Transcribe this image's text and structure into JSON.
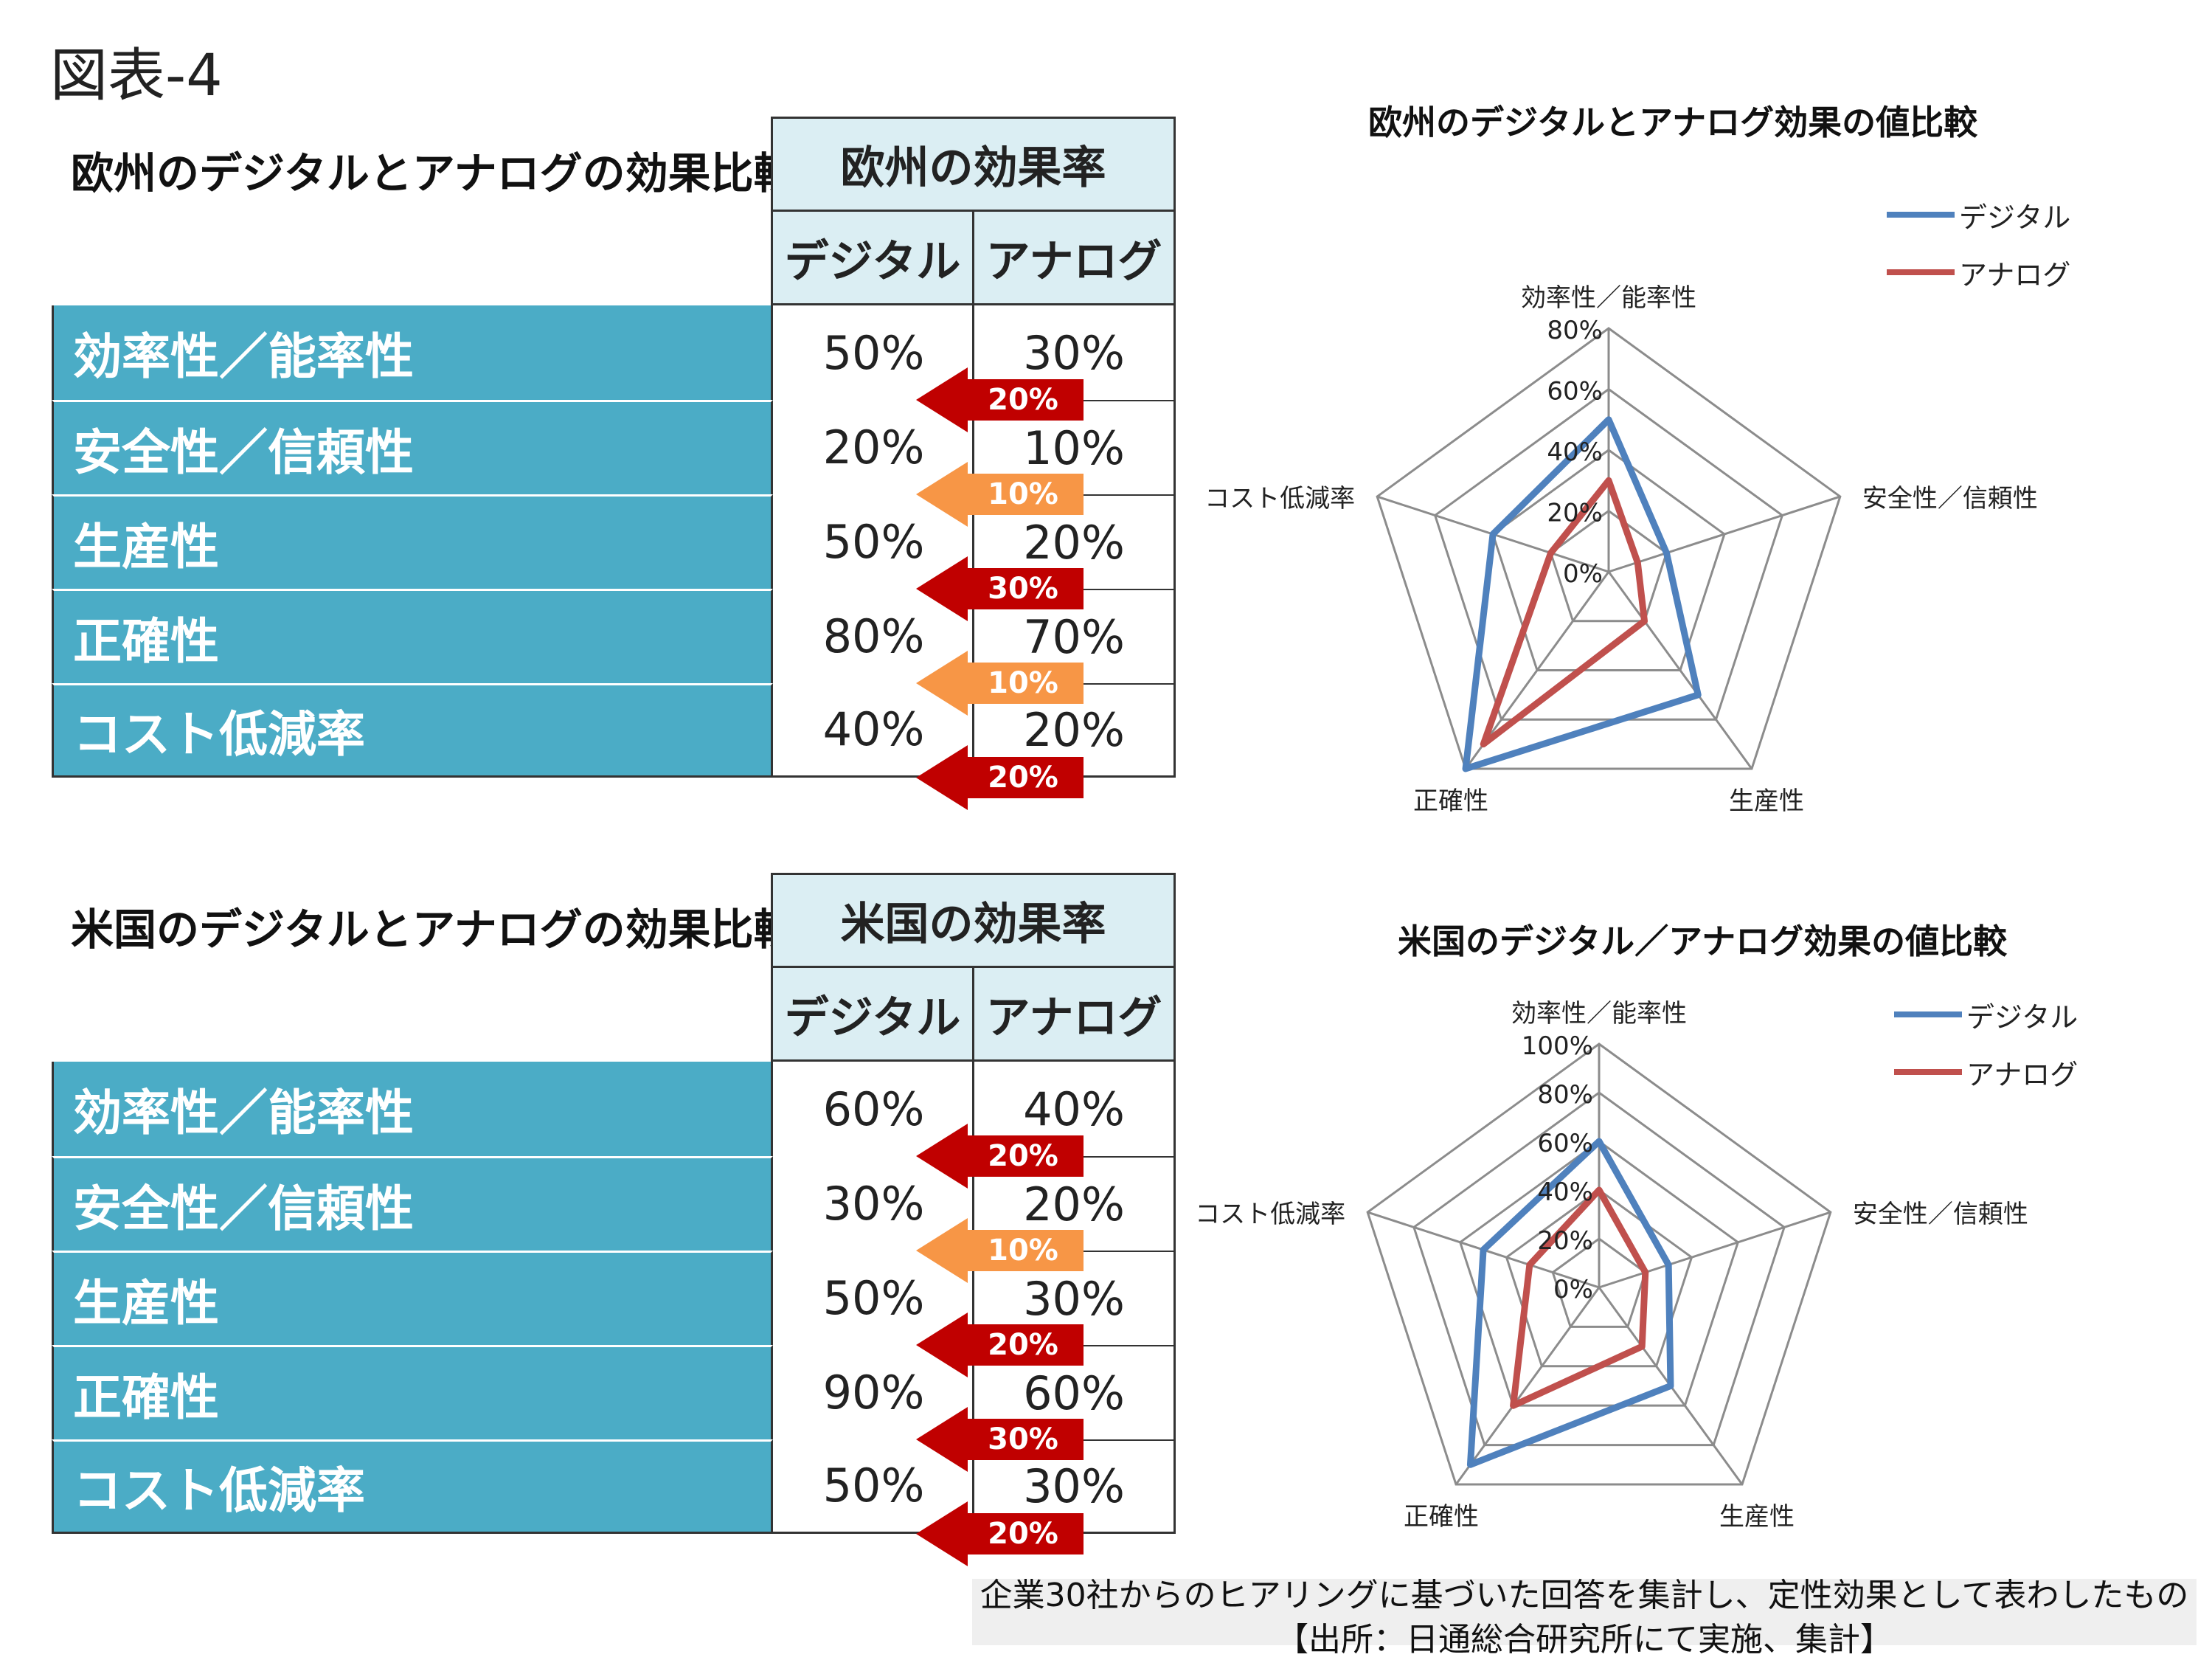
{
  "figure_label": "図表-4",
  "tables": [
    {
      "title": "欧州のデジタルとアナログの効果比較",
      "header": "欧州の効果率",
      "col_digital": "デジタル",
      "col_analog": "アナログ",
      "rows": [
        {
          "label": "効率性／能率性",
          "digital": "50%",
          "analog": "30%"
        },
        {
          "label": "安全性／信頼性",
          "digital": "20%",
          "analog": "10%"
        },
        {
          "label": "生産性",
          "digital": "50%",
          "analog": "20%"
        },
        {
          "label": "正確性",
          "digital": "80%",
          "analog": "70%"
        },
        {
          "label": "コスト低減率",
          "digital": "40%",
          "analog": "20%"
        }
      ],
      "diffs": [
        {
          "text": "20%",
          "color": "#c00000"
        },
        {
          "text": "10%",
          "color": "#f79646"
        },
        {
          "text": "30%",
          "color": "#c00000"
        },
        {
          "text": "10%",
          "color": "#f79646"
        },
        {
          "text": "20%",
          "color": "#c00000"
        }
      ]
    },
    {
      "title": "米国のデジタルとアナログの効果比較",
      "header": "米国の効果率",
      "col_digital": "デジタル",
      "col_analog": "アナログ",
      "rows": [
        {
          "label": "効率性／能率性",
          "digital": "60%",
          "analog": "40%"
        },
        {
          "label": "安全性／信頼性",
          "digital": "30%",
          "analog": "20%"
        },
        {
          "label": "生産性",
          "digital": "50%",
          "analog": "30%"
        },
        {
          "label": "正確性",
          "digital": "90%",
          "analog": "60%"
        },
        {
          "label": "コスト低減率",
          "digital": "50%",
          "analog": "30%"
        }
      ],
      "diffs": [
        {
          "text": "20%",
          "color": "#c00000"
        },
        {
          "text": "10%",
          "color": "#f79646"
        },
        {
          "text": "20%",
          "color": "#c00000"
        },
        {
          "text": "30%",
          "color": "#c00000"
        },
        {
          "text": "20%",
          "color": "#c00000"
        }
      ]
    }
  ],
  "chart_data": [
    {
      "type": "radar",
      "title": "欧州のデジタルとアナログ効果の値比較",
      "categories": [
        "効率性／能率性",
        "安全性／信頼性",
        "生産性",
        "正確性",
        "コスト低減率"
      ],
      "axis_ticks": [
        "0%",
        "20%",
        "40%",
        "60%",
        "80%"
      ],
      "rmax": 80,
      "series": [
        {
          "name": "デジタル",
          "color": "#4f81bd",
          "values": [
            50,
            20,
            50,
            80,
            40
          ]
        },
        {
          "name": "アナログ",
          "color": "#c0504d",
          "values": [
            30,
            10,
            20,
            70,
            20
          ]
        }
      ]
    },
    {
      "type": "radar",
      "title": "米国のデジタル／アナログ効果の値比較",
      "categories": [
        "効率性／能率性",
        "安全性／信頼性",
        "生産性",
        "正確性",
        "コスト低減率"
      ],
      "axis_ticks": [
        "0%",
        "20%",
        "40%",
        "60%",
        "80%",
        "100%"
      ],
      "rmax": 100,
      "series": [
        {
          "name": "デジタル",
          "color": "#4f81bd",
          "values": [
            60,
            30,
            50,
            90,
            50
          ]
        },
        {
          "name": "アナログ",
          "color": "#c0504d",
          "values": [
            40,
            20,
            30,
            60,
            30
          ]
        }
      ]
    }
  ],
  "source": {
    "line1": "企業30社からのヒアリングに基づいた回答を集計し、定性効果として表わしたもの",
    "line2": "【出所：日通総合研究所にて実施、集計】"
  }
}
